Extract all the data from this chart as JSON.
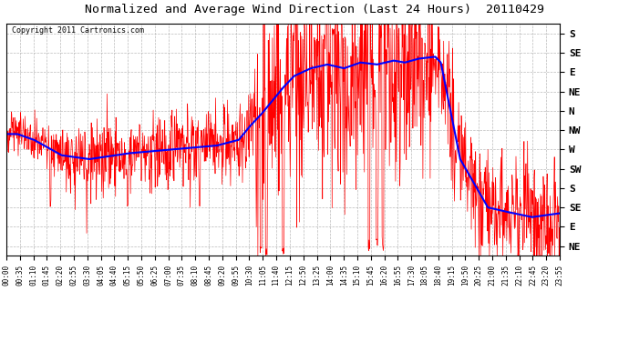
{
  "title": "Normalized and Average Wind Direction (Last 24 Hours)  20110429",
  "copyright": "Copyright 2011 Cartronics.com",
  "bg_color": "#ffffff",
  "plot_bg_color": "#ffffff",
  "grid_color": "#aaaaaa",
  "red_color": "#ff0000",
  "blue_color": "#0000ff",
  "y_labels": [
    "S",
    "SE",
    "E",
    "NE",
    "N",
    "NW",
    "W",
    "SW",
    "S",
    "SE",
    "E",
    "NE"
  ],
  "y_ticks": [
    0,
    1,
    2,
    3,
    4,
    5,
    6,
    7,
    8,
    9,
    10,
    11
  ],
  "y_min": -0.5,
  "y_max": 11.5,
  "x_tick_labels": [
    "00:00",
    "00:35",
    "01:10",
    "01:45",
    "02:20",
    "02:55",
    "03:30",
    "04:05",
    "04:40",
    "05:15",
    "05:50",
    "06:25",
    "07:00",
    "07:35",
    "08:10",
    "08:45",
    "09:20",
    "09:55",
    "10:30",
    "11:05",
    "11:40",
    "12:15",
    "12:50",
    "13:25",
    "14:00",
    "14:35",
    "15:10",
    "15:45",
    "16:20",
    "16:55",
    "17:30",
    "18:05",
    "18:40",
    "19:15",
    "19:50",
    "20:25",
    "21:00",
    "21:35",
    "22:10",
    "22:45",
    "23:20",
    "23:55"
  ],
  "blue_profile_x": [
    0.0,
    0.02,
    0.05,
    0.1,
    0.15,
    0.22,
    0.3,
    0.38,
    0.42,
    0.44,
    0.46,
    0.48,
    0.5,
    0.52,
    0.55,
    0.58,
    0.61,
    0.64,
    0.67,
    0.7,
    0.72,
    0.745,
    0.775,
    0.785,
    0.82,
    0.87,
    0.9,
    0.95,
    1.0
  ],
  "blue_profile_y": [
    5.2,
    5.2,
    5.5,
    6.3,
    6.5,
    6.2,
    6.0,
    5.8,
    5.5,
    4.8,
    4.2,
    3.5,
    2.8,
    2.2,
    1.8,
    1.6,
    1.8,
    1.5,
    1.6,
    1.4,
    1.5,
    1.3,
    1.2,
    1.5,
    6.5,
    9.0,
    9.2,
    9.5,
    9.3
  ]
}
